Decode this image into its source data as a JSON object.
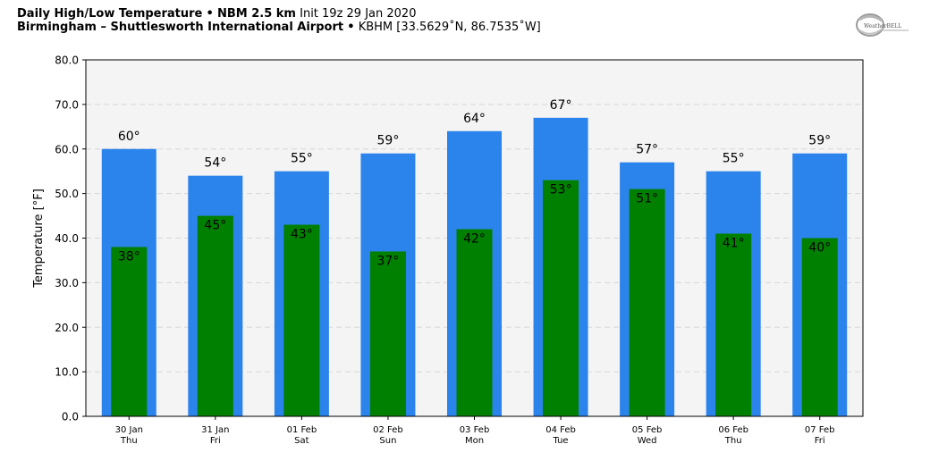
{
  "header": {
    "title": "Daily High/Low Temperature",
    "bullet": "•",
    "model": "NBM 2.5 km",
    "init": "Init 19z 29 Jan 2020",
    "location": "Birmingham – Shuttlesworth International Airport",
    "station": "KBHM [33.5629˚N, 86.7535˚W]"
  },
  "logo": {
    "text": "WeatherBELL"
  },
  "chart_data": {
    "type": "bar",
    "categories": [
      "30 Jan",
      "31 Jan",
      "01 Feb",
      "02 Feb",
      "03 Feb",
      "04 Feb",
      "05 Feb",
      "06 Feb",
      "07 Feb"
    ],
    "days": [
      "Thu",
      "Fri",
      "Sat",
      "Sun",
      "Mon",
      "Tue",
      "Wed",
      "Thu",
      "Fri"
    ],
    "series": [
      {
        "values": [
          60,
          54,
          55,
          59,
          64,
          67,
          57,
          55,
          59
        ],
        "color": "#2b83ec"
      },
      {
        "values": [
          38,
          45,
          43,
          37,
          42,
          53,
          51,
          41,
          40
        ],
        "color": "#008000"
      }
    ],
    "high_labels": [
      "60°",
      "54°",
      "55°",
      "59°",
      "64°",
      "67°",
      "57°",
      "55°",
      "59°"
    ],
    "low_labels": [
      "38°",
      "45°",
      "43°",
      "37°",
      "42°",
      "53°",
      "51°",
      "41°",
      "40°"
    ],
    "ylabel": "Temperature [°F]",
    "ylim": [
      0,
      80
    ],
    "yticks": [
      "0.0",
      "10.0",
      "20.0",
      "30.0",
      "40.0",
      "50.0",
      "60.0",
      "70.0",
      "80.0"
    ],
    "grid": true,
    "plot_background": "#f4f4f4"
  }
}
